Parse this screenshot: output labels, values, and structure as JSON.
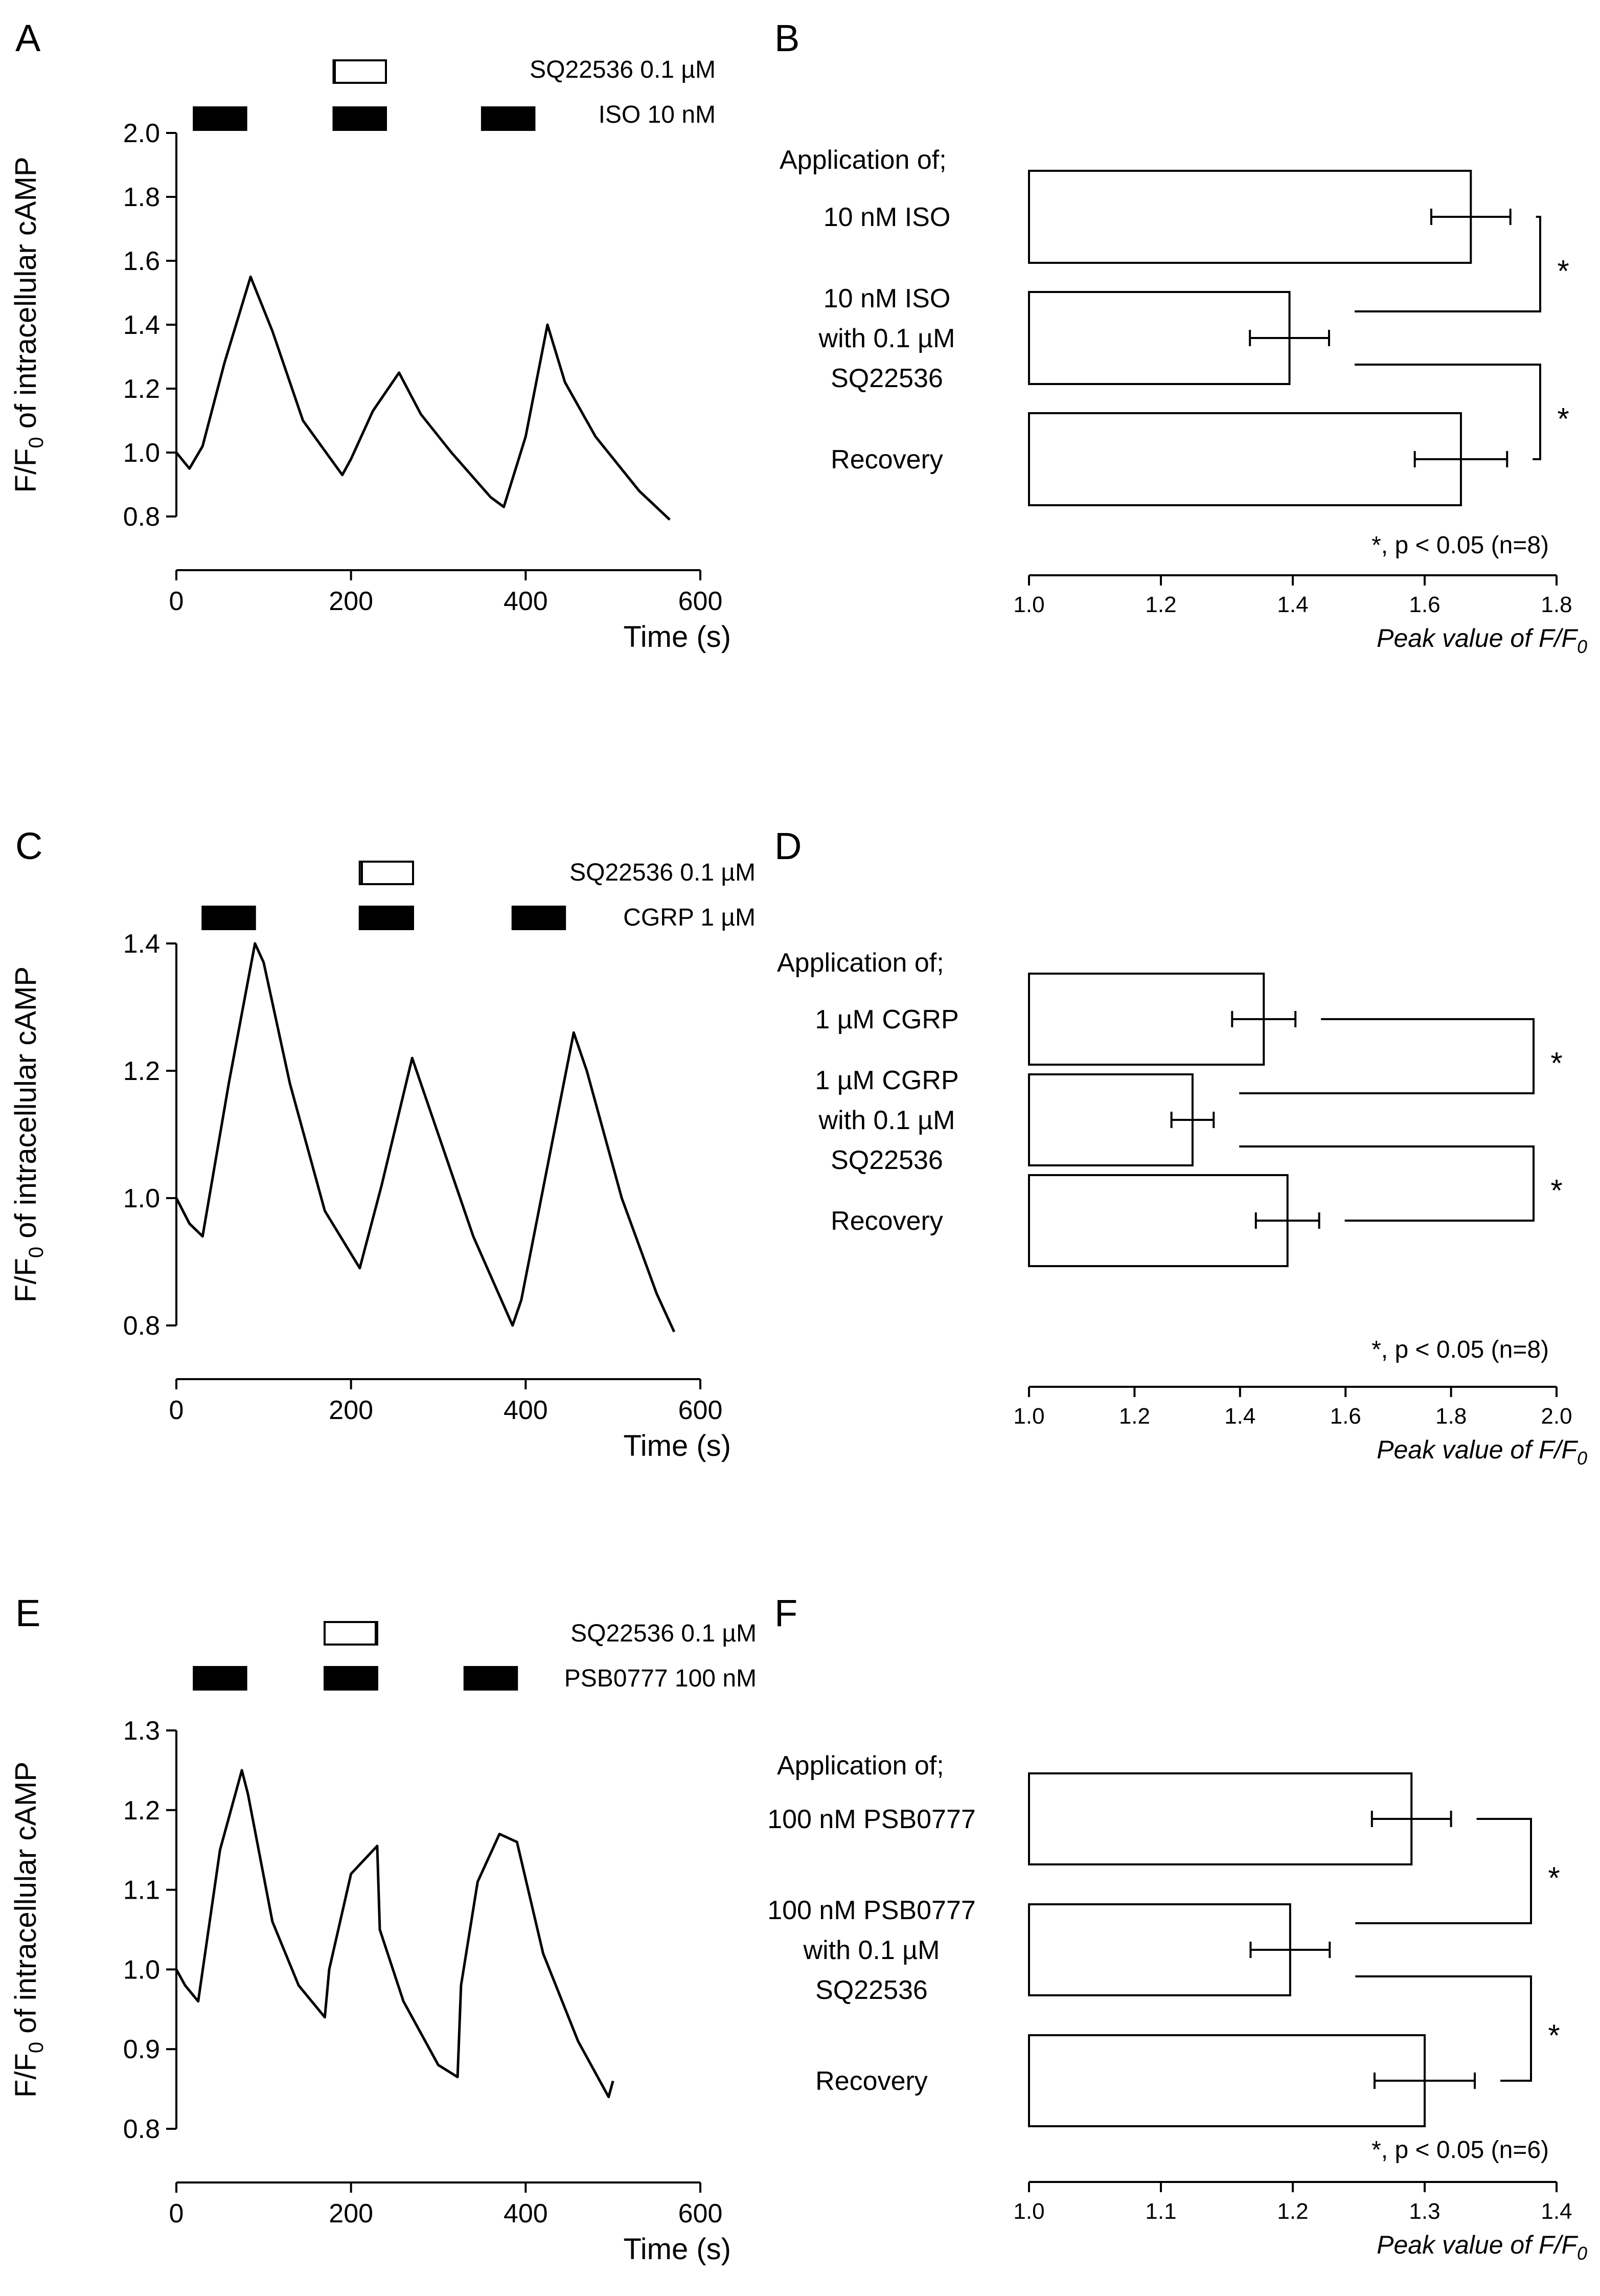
{
  "panels": {
    "A": {
      "label": "A",
      "legend": [
        {
          "label": "SQ22536 0.1 µM",
          "filled": false
        },
        {
          "label": "ISO 10 nM",
          "filled": true
        }
      ]
    },
    "B": {
      "label": "B",
      "heading": "Application of;",
      "note": "*, p < 0.05 (n=8)"
    },
    "C": {
      "label": "C",
      "legend": [
        {
          "label": "SQ22536 0.1 µM",
          "filled": false
        },
        {
          "label": "CGRP 1 µM",
          "filled": true
        }
      ]
    },
    "D": {
      "label": "D",
      "heading": "Application of;",
      "note": "*, p < 0.05 (n=8)"
    },
    "E": {
      "label": "E",
      "legend": [
        {
          "label": "SQ22536 0.1 µM",
          "filled": false
        },
        {
          "label": "PSB0777 100 nM",
          "filled": true
        }
      ]
    },
    "F": {
      "label": "F",
      "heading": "Application of;",
      "note": "*, p < 0.05 (n=6)"
    }
  },
  "chart_data": [
    {
      "panel": "A",
      "type": "line",
      "ylabel": "F/F0 of intracellular cAMP",
      "xlabel": "Time (s)",
      "xlim": [
        0,
        600
      ],
      "ylim": [
        0.8,
        2.0
      ],
      "xticks": [
        0,
        200,
        400,
        600
      ],
      "yticks": [
        0.8,
        1.0,
        1.2,
        1.4,
        1.6,
        1.8,
        2.0
      ],
      "applications": {
        "SQ22536": [
          [
            180,
            240
          ]
        ],
        "ISO": [
          [
            20,
            80
          ],
          [
            180,
            240
          ],
          [
            350,
            410
          ]
        ]
      },
      "series": [
        {
          "x": [
            0,
            15,
            30,
            55,
            85,
            110,
            145,
            190,
            200,
            225,
            255,
            280,
            315,
            360,
            375,
            400,
            425,
            445,
            480,
            530,
            565
          ],
          "y": [
            1.0,
            0.95,
            1.02,
            1.28,
            1.55,
            1.38,
            1.1,
            0.93,
            0.98,
            1.13,
            1.25,
            1.12,
            1.0,
            0.86,
            0.83,
            1.05,
            1.4,
            1.22,
            1.05,
            0.88,
            0.79
          ]
        }
      ]
    },
    {
      "panel": "B",
      "type": "bar",
      "orientation": "horizontal",
      "xlabel": "Peak value of F/F0",
      "xlim": [
        1.0,
        1.8
      ],
      "xticks": [
        1.0,
        1.2,
        1.4,
        1.6,
        1.8
      ],
      "categories": [
        [
          "10 nM ISO"
        ],
        [
          "10 nM ISO",
          "with 0.1 µM",
          "SQ22536"
        ],
        [
          "Recovery"
        ]
      ],
      "values": [
        1.67,
        1.395,
        1.655
      ],
      "errors": [
        0.06,
        0.06,
        0.07
      ],
      "significance": [
        {
          "between": [
            0,
            1
          ],
          "label": "*"
        },
        {
          "between": [
            1,
            2
          ],
          "label": "*"
        }
      ]
    },
    {
      "panel": "C",
      "type": "line",
      "ylabel": "F/F0 of intracellular cAMP",
      "xlabel": "Time (s)",
      "xlim": [
        0,
        600
      ],
      "ylim": [
        0.8,
        1.4
      ],
      "xticks": [
        0,
        200,
        400,
        600
      ],
      "yticks": [
        0.8,
        1.0,
        1.2,
        1.4
      ],
      "applications": {
        "SQ22536": [
          [
            210,
            270
          ]
        ],
        "CGRP": [
          [
            30,
            90
          ],
          [
            210,
            270
          ],
          [
            385,
            445
          ]
        ]
      },
      "series": [
        {
          "x": [
            0,
            15,
            30,
            60,
            90,
            100,
            130,
            170,
            210,
            235,
            270,
            300,
            340,
            385,
            395,
            425,
            455,
            470,
            510,
            550,
            570
          ],
          "y": [
            1.0,
            0.96,
            0.94,
            1.18,
            1.4,
            1.37,
            1.18,
            0.98,
            0.89,
            1.02,
            1.22,
            1.1,
            0.94,
            0.8,
            0.84,
            1.05,
            1.26,
            1.2,
            1.0,
            0.85,
            0.79
          ]
        }
      ]
    },
    {
      "panel": "D",
      "type": "bar",
      "orientation": "horizontal",
      "xlabel": "Peak value of F/F0",
      "xlim": [
        1.0,
        2.0
      ],
      "xticks": [
        1.0,
        1.2,
        1.4,
        1.6,
        1.8,
        2.0
      ],
      "categories": [
        [
          "1 µM CGRP"
        ],
        [
          "1 µM CGRP",
          "with 0.1 µM",
          "SQ22536"
        ],
        [
          "Recovery"
        ]
      ],
      "values": [
        1.445,
        1.31,
        1.49
      ],
      "errors": [
        0.06,
        0.04,
        0.06
      ],
      "significance": [
        {
          "between": [
            0,
            1
          ],
          "label": "*"
        },
        {
          "between": [
            1,
            2
          ],
          "label": "*"
        }
      ]
    },
    {
      "panel": "E",
      "type": "line",
      "ylabel": "F/F0 of intracellular cAMP",
      "xlabel": "Time (s)",
      "xlim": [
        0,
        600
      ],
      "ylim": [
        0.8,
        1.3
      ],
      "xticks": [
        0,
        200,
        400,
        600
      ],
      "yticks": [
        0.8,
        0.9,
        1.0,
        1.1,
        1.2,
        1.3
      ],
      "applications": {
        "SQ22536": [
          [
            170,
            230
          ]
        ],
        "PSB0777": [
          [
            20,
            80
          ],
          [
            170,
            230
          ],
          [
            330,
            390
          ]
        ]
      },
      "series": [
        {
          "x": [
            0,
            10,
            25,
            50,
            75,
            82,
            110,
            140,
            170,
            175,
            200,
            230,
            233,
            260,
            300,
            322,
            326,
            345,
            370,
            390,
            420,
            460,
            495,
            500
          ],
          "y": [
            1.0,
            0.98,
            0.96,
            1.15,
            1.25,
            1.22,
            1.06,
            0.98,
            0.94,
            1.0,
            1.12,
            1.155,
            1.05,
            0.96,
            0.88,
            0.865,
            0.98,
            1.11,
            1.17,
            1.16,
            1.02,
            0.91,
            0.84,
            0.86
          ]
        }
      ]
    },
    {
      "panel": "F",
      "type": "bar",
      "orientation": "horizontal",
      "xlabel": "Peak value of F/F0",
      "xlim": [
        1.0,
        1.4
      ],
      "xticks": [
        1.0,
        1.1,
        1.2,
        1.3,
        1.4
      ],
      "categories": [
        [
          "100 nM PSB0777"
        ],
        [
          "100 nM PSB0777",
          "with 0.1 µM",
          "SQ22536"
        ],
        [
          "Recovery"
        ]
      ],
      "values": [
        1.29,
        1.198,
        1.3
      ],
      "errors": [
        0.03,
        0.03,
        0.038
      ],
      "significance": [
        {
          "between": [
            0,
            1
          ],
          "label": "*"
        },
        {
          "between": [
            1,
            2
          ],
          "label": "*"
        }
      ]
    }
  ]
}
